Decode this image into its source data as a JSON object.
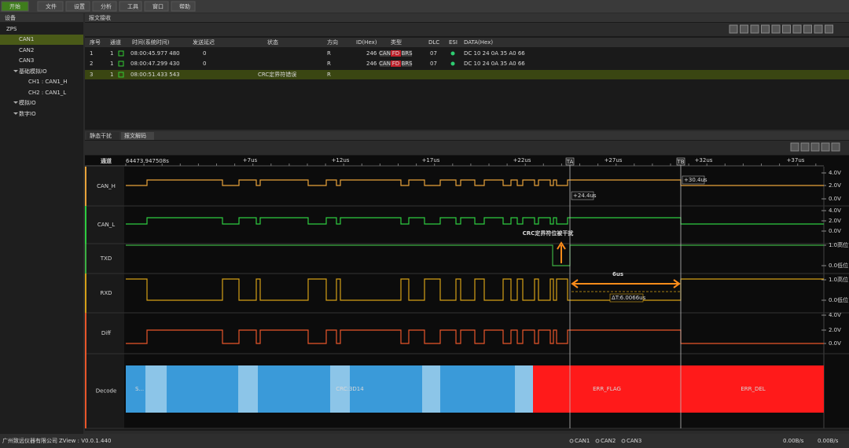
{
  "toolbar": {
    "buttons": [
      "开始",
      "文件",
      "设置",
      "分析",
      "工具",
      "窗口",
      "帮助"
    ]
  },
  "device_panel": {
    "tab": "设备",
    "tree": [
      "ZPS",
      "CAN1",
      "CAN2",
      "CAN3",
      "基础模拟IO",
      "CH1 : CAN1_H",
      "CH2 : CAN1_L",
      "模拟IO",
      "数字IO"
    ]
  },
  "receive_panel": {
    "tab": "报文接收",
    "table": {
      "columns": [
        "序号",
        "通道",
        "时间(系统时间)",
        "发送延迟",
        "状态",
        "方向",
        "ID(Hex)",
        "类型",
        "DLC",
        "ESI",
        "DATA(Hex)"
      ],
      "rows": [
        {
          "index": "1",
          "channel": "1",
          "time": "08:00:45.977 480",
          "delay": "0",
          "dir": "R",
          "id": "246",
          "type": [
            "CAN",
            "FD",
            "BRS"
          ],
          "dlc": "07",
          "data": "DC 10 24 0A 35 A0 66"
        },
        {
          "index": "2",
          "channel": "1",
          "time": "08:00:47.299 430",
          "delay": "0",
          "dir": "R",
          "id": "246",
          "type": [
            "CAN",
            "FD",
            "BRS"
          ],
          "dlc": "07",
          "data": "DC 10 24 0A 35 A0 66"
        },
        {
          "index": "3",
          "channel": "1",
          "time": "08:00:51.433 543",
          "status": "CRC定界符错误",
          "dir": "R"
        }
      ]
    }
  },
  "decode_panel": {
    "tabs": [
      "静态干扰",
      "报文解码"
    ],
    "channel_header": "通道",
    "timestamp": "64473.947508s",
    "time_ticks": [
      "+7us",
      "+12us",
      "+17us",
      "+22us",
      "+27us",
      "+32us",
      "+37us"
    ],
    "markers": [
      "TA",
      "TB"
    ],
    "channels": [
      {
        "name": "CAN_H",
        "scale": [
          "4.0V",
          "2.0V",
          "0.0V"
        ]
      },
      {
        "name": "CAN_L",
        "scale": [
          "4.0V",
          "2.0V",
          "0.0V"
        ]
      },
      {
        "name": "TXD",
        "scale": [
          "1.0高位",
          "0.0低位"
        ]
      },
      {
        "name": "RXD",
        "scale": [
          "1.0高位",
          "0.0低位"
        ]
      },
      {
        "name": "Diff",
        "scale": [
          "4.0V",
          "2.0V",
          "0.0V"
        ]
      },
      {
        "name": "Decode"
      }
    ],
    "cursor_labels": [
      "+24.4us",
      "+30.4us"
    ],
    "delta": "ΔT:6.0066us",
    "annotations": [
      "CRC定界符位被干扰",
      "6us"
    ],
    "decode_labels": [
      "S...",
      "CRC:3D14",
      "ERR_FLAG",
      "ERR_DEL"
    ]
  },
  "status_bar": {
    "company": "广州致远仪器有限公司",
    "version": "ZView : V0.0.1.440",
    "channels": [
      "CAN1",
      "CAN2",
      "CAN3"
    ],
    "rates": [
      "0.00B/s",
      "0.00B/s"
    ]
  }
}
